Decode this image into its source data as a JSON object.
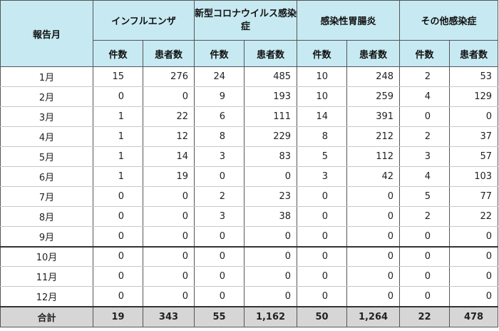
{
  "header": {
    "month_label": "報告月",
    "groups": [
      "インフルエンザ",
      "新型コロナウイルス感染症",
      "感染性胃腸炎",
      "その他感染症"
    ],
    "sub": [
      "件数",
      "患者数"
    ]
  },
  "rows": [
    {
      "m": "1月",
      "v": [
        "15",
        "276",
        "24",
        "485",
        "10",
        "248",
        "2",
        "53"
      ]
    },
    {
      "m": "2月",
      "v": [
        "0",
        "0",
        "9",
        "193",
        "10",
        "259",
        "4",
        "129"
      ]
    },
    {
      "m": "3月",
      "v": [
        "1",
        "22",
        "6",
        "111",
        "14",
        "391",
        "0",
        "0"
      ]
    },
    {
      "m": "4月",
      "v": [
        "1",
        "12",
        "8",
        "229",
        "8",
        "212",
        "2",
        "37"
      ]
    },
    {
      "m": "5月",
      "v": [
        "1",
        "14",
        "3",
        "83",
        "5",
        "112",
        "3",
        "57"
      ]
    },
    {
      "m": "6月",
      "v": [
        "1",
        "19",
        "0",
        "0",
        "3",
        "42",
        "4",
        "103"
      ]
    },
    {
      "m": "7月",
      "v": [
        "0",
        "0",
        "2",
        "23",
        "0",
        "0",
        "5",
        "77"
      ]
    },
    {
      "m": "8月",
      "v": [
        "0",
        "0",
        "3",
        "38",
        "0",
        "0",
        "2",
        "22"
      ]
    },
    {
      "m": "9月",
      "v": [
        "0",
        "0",
        "0",
        "0",
        "0",
        "0",
        "0",
        "0"
      ]
    },
    {
      "m": "10月",
      "v": [
        "0",
        "0",
        "0",
        "0",
        "0",
        "0",
        "0",
        "0"
      ]
    },
    {
      "m": "11月",
      "v": [
        "0",
        "0",
        "0",
        "0",
        "0",
        "0",
        "0",
        "0"
      ]
    },
    {
      "m": "12月",
      "v": [
        "0",
        "0",
        "0",
        "0",
        "0",
        "0",
        "0",
        "0"
      ]
    }
  ],
  "total": {
    "label": "合計",
    "v": [
      "19",
      "343",
      "55",
      "1,162",
      "50",
      "1,264",
      "22",
      "478"
    ]
  }
}
